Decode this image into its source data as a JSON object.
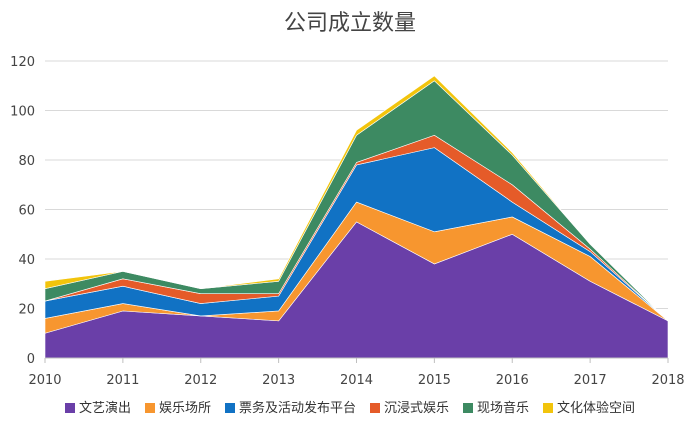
{
  "chart_data": {
    "type": "area",
    "stacked": true,
    "title": "公司成立数量",
    "categories": [
      "2010",
      "2011",
      "2012",
      "2013",
      "2014",
      "2015",
      "2016",
      "2017",
      "2018"
    ],
    "ylim": [
      0,
      120
    ],
    "yticks": [
      "0",
      "20",
      "40",
      "60",
      "80",
      "100",
      "120"
    ],
    "grid": true,
    "legend_position": "bottom",
    "series": [
      {
        "name": "文艺演出",
        "color": "#6A3FA8",
        "values": [
          10,
          19,
          17,
          15,
          55,
          38,
          50,
          31,
          15
        ]
      },
      {
        "name": "娱乐场所",
        "color": "#F7962F",
        "values": [
          6,
          3,
          0,
          4,
          8,
          13,
          7,
          10,
          0
        ]
      },
      {
        "name": "票务及活动发布平台",
        "color": "#1172C4",
        "values": [
          7,
          7,
          5,
          6,
          15,
          34,
          6,
          2,
          0
        ]
      },
      {
        "name": "沉浸式娱乐",
        "color": "#E55B29",
        "values": [
          0,
          3,
          4,
          1,
          1,
          5,
          7,
          1,
          0
        ]
      },
      {
        "name": "现场音乐",
        "color": "#3D8A62",
        "values": [
          5,
          3,
          2,
          5,
          11,
          22,
          12,
          2,
          0
        ]
      },
      {
        "name": "文化体验空间",
        "color": "#F2C40C",
        "values": [
          3,
          0,
          0,
          1,
          2,
          2,
          1,
          0,
          0
        ]
      }
    ]
  }
}
